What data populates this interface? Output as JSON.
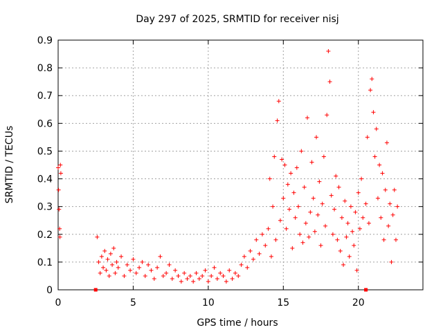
{
  "chart_data": {
    "type": "scatter",
    "title": "Day 297 of 2025, SRMTID for receiver nisj",
    "xlabel": "GPS time / hours",
    "ylabel": "SRMTID / TECUs",
    "xlim": [
      0,
      24.3
    ],
    "ylim": [
      0,
      0.9
    ],
    "xticks": [
      0,
      5,
      10,
      15,
      20
    ],
    "xtick_labels": [
      "0",
      "5",
      "10",
      "15",
      "20"
    ],
    "yticks": [
      0,
      0.1,
      0.2,
      0.3,
      0.4,
      0.5,
      0.6,
      0.7,
      0.8,
      0.9
    ],
    "ytick_labels": [
      "0",
      "0.1",
      "0.2",
      "0.3",
      "0.4",
      "0.5",
      "0.6",
      "0.7",
      "0.8",
      "0.9"
    ],
    "grid": true,
    "marker": "plus",
    "color": "#ff0000",
    "gap_flags": [
      2.5,
      20.5
    ],
    "series": [
      {
        "name": "SRMTID",
        "x": [
          0.0,
          0.03,
          0.06,
          0.1,
          0.12,
          0.15,
          0.18,
          2.6,
          2.7,
          2.8,
          2.9,
          3.0,
          3.1,
          3.2,
          3.3,
          3.4,
          3.5,
          3.6,
          3.7,
          3.8,
          3.9,
          4.0,
          4.2,
          4.4,
          4.6,
          4.8,
          5.0,
          5.2,
          5.4,
          5.6,
          5.8,
          6.0,
          6.2,
          6.4,
          6.6,
          6.8,
          7.0,
          7.2,
          7.4,
          7.6,
          7.8,
          8.0,
          8.2,
          8.4,
          8.6,
          8.8,
          9.0,
          9.2,
          9.4,
          9.6,
          9.8,
          10.0,
          10.2,
          10.4,
          10.6,
          10.8,
          11.0,
          11.2,
          11.4,
          11.6,
          11.8,
          12.0,
          12.2,
          12.4,
          12.6,
          12.8,
          13.0,
          13.2,
          13.4,
          13.6,
          13.8,
          14.0,
          14.1,
          14.2,
          14.3,
          14.4,
          14.5,
          14.6,
          14.7,
          14.8,
          14.9,
          15.0,
          15.1,
          15.2,
          15.3,
          15.4,
          15.5,
          15.6,
          15.7,
          15.8,
          15.9,
          16.0,
          16.1,
          16.2,
          16.3,
          16.4,
          16.5,
          16.6,
          16.7,
          16.8,
          16.9,
          17.0,
          17.1,
          17.2,
          17.3,
          17.4,
          17.5,
          17.6,
          17.7,
          17.8,
          17.9,
          18.0,
          18.1,
          18.2,
          18.3,
          18.4,
          18.5,
          18.6,
          18.7,
          18.8,
          18.9,
          19.0,
          19.1,
          19.2,
          19.3,
          19.4,
          19.5,
          19.6,
          19.7,
          19.8,
          19.9,
          20.0,
          20.1,
          20.2,
          20.3,
          20.5,
          20.6,
          20.7,
          20.8,
          20.9,
          21.0,
          21.1,
          21.2,
          21.3,
          21.4,
          21.5,
          21.6,
          21.7,
          21.8,
          21.9,
          22.0,
          22.1,
          22.2,
          22.3,
          22.4,
          22.5,
          22.6
        ],
        "y": [
          0.44,
          0.36,
          0.29,
          0.22,
          0.19,
          0.45,
          0.42,
          0.19,
          0.1,
          0.06,
          0.12,
          0.08,
          0.14,
          0.07,
          0.11,
          0.05,
          0.13,
          0.09,
          0.15,
          0.06,
          0.1,
          0.08,
          0.12,
          0.05,
          0.09,
          0.07,
          0.11,
          0.06,
          0.08,
          0.1,
          0.05,
          0.09,
          0.07,
          0.04,
          0.08,
          0.12,
          0.05,
          0.06,
          0.09,
          0.04,
          0.07,
          0.05,
          0.03,
          0.06,
          0.04,
          0.05,
          0.03,
          0.06,
          0.04,
          0.05,
          0.07,
          0.03,
          0.05,
          0.08,
          0.04,
          0.06,
          0.05,
          0.03,
          0.07,
          0.04,
          0.06,
          0.05,
          0.09,
          0.12,
          0.08,
          0.14,
          0.11,
          0.18,
          0.13,
          0.2,
          0.16,
          0.22,
          0.4,
          0.12,
          0.3,
          0.48,
          0.18,
          0.61,
          0.68,
          0.25,
          0.47,
          0.33,
          0.45,
          0.22,
          0.38,
          0.29,
          0.42,
          0.15,
          0.35,
          0.26,
          0.44,
          0.3,
          0.2,
          0.5,
          0.17,
          0.37,
          0.24,
          0.62,
          0.19,
          0.28,
          0.46,
          0.33,
          0.21,
          0.55,
          0.27,
          0.39,
          0.16,
          0.31,
          0.48,
          0.23,
          0.63,
          0.86,
          0.75,
          0.34,
          0.2,
          0.29,
          0.41,
          0.18,
          0.37,
          0.14,
          0.26,
          0.09,
          0.32,
          0.19,
          0.24,
          0.12,
          0.3,
          0.21,
          0.16,
          0.28,
          0.07,
          0.35,
          0.22,
          0.4,
          0.26,
          0.31,
          0.55,
          0.24,
          0.72,
          0.76,
          0.64,
          0.48,
          0.58,
          0.33,
          0.45,
          0.26,
          0.42,
          0.18,
          0.36,
          0.53,
          0.23,
          0.31,
          0.1,
          0.27,
          0.36,
          0.18,
          0.3
        ]
      }
    ]
  }
}
